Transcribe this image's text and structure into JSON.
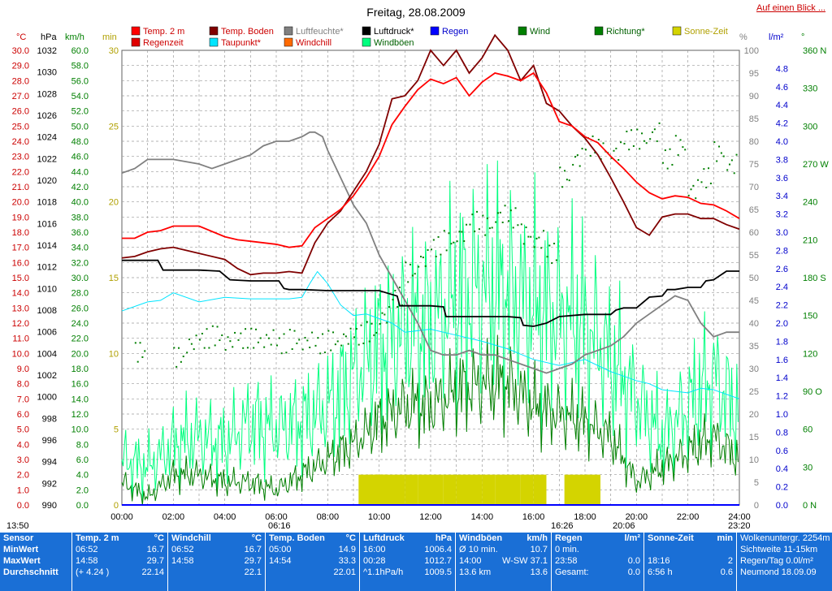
{
  "title": "Freitag, 28.08.2009",
  "link": "Auf einen Blick ...",
  "colors": {
    "temp": "#ff0000",
    "boden": "#800000",
    "humid": "#808080",
    "pressure": "#000000",
    "dew": "#00e5ff",
    "windchill": "#ff6a00",
    "gust": "#00ff7f",
    "rain": "#0000ff",
    "wind": "#007f00",
    "dir": "#007f00",
    "sun": "#d4d400",
    "rainTime": "#e00000"
  },
  "legend": [
    {
      "label": "Temp. 2 m",
      "color": "#ff0000"
    },
    {
      "label": "Temp. Boden",
      "color": "#800000"
    },
    {
      "label": "Luftfeuchte*",
      "color": "#808080"
    },
    {
      "label": "Luftdruck*",
      "color": "#000000"
    },
    {
      "label": "Regen",
      "color": "#0000ff"
    },
    {
      "label": "Wind",
      "color": "#007f00"
    },
    {
      "label": "Richtung*",
      "color": "#007f00"
    },
    {
      "label": "Sonne-Zeit",
      "color": "#d4d400"
    },
    {
      "label": "Regenzeit",
      "color": "#e00000"
    },
    {
      "label": "Taupunkt*",
      "color": "#00e5ff"
    },
    {
      "label": "Windchill",
      "color": "#ff6a00"
    },
    {
      "label": "Windböen",
      "color": "#00ff7f"
    }
  ],
  "axis_units": {
    "temp": "°C",
    "pressure": "hPa",
    "speed": "km/h",
    "minutes": "min",
    "percent": "%",
    "rain": "l/m²",
    "degree": "°"
  },
  "axes": {
    "temp_ticks": [
      "30.0",
      "29.0",
      "28.0",
      "27.0",
      "26.0",
      "25.0",
      "24.0",
      "23.0",
      "22.0",
      "21.0",
      "20.0",
      "19.0",
      "18.0",
      "17.0",
      "16.0",
      "15.0",
      "14.0",
      "13.0",
      "12.0",
      "11.0",
      "10.0",
      "9.0",
      "8.0",
      "7.0",
      "6.0",
      "5.0",
      "4.0",
      "3.0",
      "2.0",
      "1.0",
      "0.0"
    ],
    "pressure_ticks": [
      "1032",
      "1030",
      "1028",
      "1026",
      "1024",
      "1022",
      "1020",
      "1018",
      "1016",
      "1014",
      "1012",
      "1010",
      "1008",
      "1006",
      "1004",
      "1002",
      "1000",
      "998",
      "996",
      "994",
      "992",
      "990"
    ],
    "speed_ticks": [
      "60.0",
      "58.0",
      "56.0",
      "54.0",
      "52.0",
      "50.0",
      "48.0",
      "46.0",
      "44.0",
      "42.0",
      "40.0",
      "38.0",
      "36.0",
      "34.0",
      "32.0",
      "30.0",
      "28.0",
      "26.0",
      "24.0",
      "22.0",
      "20.0",
      "18.0",
      "16.0",
      "14.0",
      "12.0",
      "10.0",
      "8.0",
      "6.0",
      "4.0",
      "2.0",
      "0.0"
    ],
    "minute_ticks": [
      "30",
      "25",
      "20",
      "15",
      "10",
      "5",
      "0"
    ],
    "percent_ticks": [
      "100",
      "95",
      "90",
      "85",
      "80",
      "75",
      "70",
      "65",
      "60",
      "55",
      "50",
      "45",
      "40",
      "35",
      "30",
      "25",
      "20",
      "15",
      "10",
      "5",
      "0"
    ],
    "rain_ticks": [
      "4.8",
      "4.6",
      "4.4",
      "4.2",
      "4.0",
      "3.8",
      "3.6",
      "3.4",
      "3.2",
      "3.0",
      "2.8",
      "2.6",
      "2.4",
      "2.2",
      "2.0",
      "1.8",
      "1.6",
      "1.4",
      "1.2",
      "1.0",
      "0.8",
      "0.6",
      "0.4",
      "0.2",
      "0.0"
    ],
    "dir_ticks": [
      "360 N",
      "330",
      "300",
      "270 W",
      "240",
      "210",
      "180 S",
      "150",
      "120",
      "90 O",
      "60",
      "30",
      "0 N"
    ],
    "time_ticks": [
      "00:00",
      "02:00",
      "04:00",
      "06:00",
      "08:00",
      "10:00",
      "12:00",
      "14:00",
      "16:00",
      "18:00",
      "20:00",
      "22:00",
      "24:00"
    ],
    "sun_marks": [
      "13:50",
      "06:16",
      "16:26",
      "20:06",
      "23:20"
    ]
  },
  "chart_data": {
    "type": "line",
    "title": "Freitag, 28.08.2009",
    "x_unit": "hour of day",
    "xlim": [
      0,
      24
    ],
    "series": [
      {
        "name": "Temp. 2 m",
        "axis": "°C",
        "ylim": [
          0,
          30
        ],
        "x": [
          0,
          0.5,
          1,
          1.5,
          2,
          3,
          4,
          4.5,
          5,
          5.5,
          6,
          6.5,
          7,
          7.5,
          8,
          8.5,
          9,
          9.5,
          10,
          10.5,
          11,
          11.5,
          12,
          12.5,
          13,
          13.5,
          14,
          14.5,
          15,
          15.5,
          16,
          16.5,
          17,
          17.5,
          18,
          18.5,
          19,
          19.5,
          20,
          20.5,
          21,
          21.5,
          22,
          22.5,
          23,
          23.5,
          24
        ],
        "y": [
          17.6,
          17.6,
          18.0,
          18.1,
          18.4,
          18.4,
          17.7,
          17.5,
          17.4,
          17.3,
          17.2,
          17.0,
          17.1,
          18.3,
          18.9,
          19.5,
          20.4,
          21.6,
          23.0,
          25.1,
          26.3,
          27.4,
          28.1,
          27.8,
          28.2,
          27.0,
          27.9,
          28.5,
          28.3,
          28.0,
          28.5,
          27.2,
          25.3,
          25.0,
          24.3,
          23.9,
          23.0,
          22.2,
          21.3,
          20.6,
          20.2,
          20.4,
          20.3,
          19.9,
          19.8,
          19.4,
          18.9
        ]
      },
      {
        "name": "Temp. Boden",
        "axis": "°C",
        "ylim": [
          0,
          30
        ],
        "x": [
          0,
          0.5,
          1,
          1.5,
          2,
          3,
          4,
          4.5,
          5,
          5.5,
          6,
          6.5,
          7,
          7.5,
          8,
          8.5,
          9,
          9.5,
          10,
          10.5,
          11,
          11.5,
          12,
          12.5,
          13,
          13.5,
          14,
          14.5,
          15,
          15.5,
          16,
          16.5,
          17,
          17.5,
          18,
          18.5,
          19,
          19.5,
          20,
          20.5,
          21,
          21.5,
          22,
          22.5,
          23,
          23.5,
          24
        ],
        "y": [
          16.3,
          16.4,
          16.7,
          16.9,
          17.0,
          16.6,
          16.2,
          15.6,
          15.2,
          15.3,
          15.3,
          15.4,
          15.3,
          17.3,
          18.6,
          19.4,
          20.7,
          22.0,
          23.8,
          26.8,
          27.0,
          28.0,
          30.0,
          29.0,
          30.0,
          28.5,
          29.5,
          31.0,
          30.0,
          28.0,
          29.0,
          26.5,
          26.0,
          25.0,
          24.2,
          23.1,
          21.6,
          20.0,
          18.3,
          17.8,
          19.0,
          19.2,
          19.2,
          18.9,
          18.9,
          18.5,
          18.2
        ]
      },
      {
        "name": "Luftfeuchte*",
        "axis": "%",
        "ylim": [
          0,
          100
        ],
        "x": [
          0,
          0.5,
          1,
          1.5,
          2,
          3,
          3.5,
          4,
          4.5,
          5,
          5.5,
          6,
          6.5,
          7,
          7.3,
          7.5,
          7.8,
          8,
          8.5,
          9,
          9.5,
          10,
          10.5,
          11,
          11.5,
          12,
          12.5,
          13,
          13.5,
          14,
          14.5,
          15,
          15.5,
          16,
          16.5,
          17,
          17.5,
          18,
          18.5,
          19,
          19.5,
          20,
          20.5,
          21,
          21.5,
          22,
          22.5,
          23,
          23.5,
          24
        ],
        "y": [
          73,
          74,
          76,
          76,
          76,
          75,
          74,
          75,
          76,
          77,
          79,
          80,
          80,
          81,
          82,
          82,
          81,
          78,
          72,
          66,
          62,
          55,
          50,
          45,
          40,
          34,
          33,
          33,
          34,
          33,
          33,
          32,
          31,
          30,
          29,
          30,
          31,
          33,
          34,
          35,
          37,
          40,
          42,
          44,
          46,
          45,
          40,
          37,
          38,
          38
        ]
      },
      {
        "name": "Luftdruck*",
        "axis": "hPa",
        "ylim": [
          990,
          1032
        ],
        "x": [
          0,
          1,
          1.4,
          1.6,
          2,
          3,
          3.8,
          4.2,
          5,
          6,
          6.1,
          6.3,
          6.5,
          7,
          8,
          9,
          10,
          10.7,
          10.8,
          11.3,
          11.5,
          12,
          12.5,
          12.6,
          14,
          15,
          15.5,
          15.6,
          16,
          16.5,
          17,
          18,
          18.5,
          19,
          19.2,
          19.5,
          20,
          20.5,
          21,
          21.2,
          21.5,
          22,
          22.5,
          22.7,
          23,
          23.5,
          24
        ],
        "y": [
          1012.6,
          1012.6,
          1012.6,
          1011.7,
          1011.7,
          1011.7,
          1011.6,
          1010.8,
          1010.7,
          1010.7,
          1010.7,
          1010.0,
          1009.9,
          1009.9,
          1009.8,
          1009.8,
          1009.8,
          1009.3,
          1008.4,
          1008.4,
          1008.4,
          1008.4,
          1008.3,
          1007.4,
          1007.4,
          1007.4,
          1007.3,
          1006.6,
          1006.5,
          1006.8,
          1007.4,
          1007.6,
          1007.6,
          1007.6,
          1008.0,
          1008.2,
          1008.2,
          1009.2,
          1009.3,
          1009.9,
          1009.9,
          1010.1,
          1010.1,
          1010.7,
          1010.8,
          1011.6,
          1011.6
        ]
      },
      {
        "name": "Taupunkt*",
        "axis": "°C",
        "ylim": [
          0,
          30
        ],
        "x": [
          0,
          1,
          1.5,
          2,
          3,
          4,
          5,
          6,
          6.5,
          7,
          7.3,
          7.6,
          8,
          8.5,
          9,
          9.5,
          10,
          10.5,
          11,
          12,
          13,
          14,
          15,
          16,
          17,
          18,
          19,
          19.5,
          20,
          20.5,
          21,
          21.5,
          22,
          22.5,
          23,
          23.5,
          24
        ],
        "y": [
          12.8,
          13.4,
          13.5,
          14.0,
          13.4,
          13.7,
          13.6,
          13.6,
          13.6,
          13.7,
          14.6,
          15.4,
          14.6,
          13.2,
          12.5,
          12.6,
          12.3,
          12.0,
          11.4,
          11.6,
          11.2,
          10.8,
          10.3,
          9.6,
          9.2,
          9.6,
          8.8,
          8.5,
          8.2,
          8.0,
          7.6,
          7.5,
          7.4,
          7.7,
          7.6,
          7.3,
          7.0
        ]
      },
      {
        "name": "Windböen",
        "axis": "km/h",
        "ylim": [
          0,
          60
        ],
        "x": [
          0,
          1,
          2,
          3,
          4,
          5,
          6,
          7,
          8,
          9,
          10,
          11,
          12,
          13,
          14,
          15,
          16,
          17,
          18,
          19,
          20,
          21,
          22,
          23,
          24
        ],
        "y": [
          6,
          5,
          8,
          9,
          8,
          11,
          10,
          11,
          13,
          17,
          21,
          23,
          24,
          27,
          29,
          28,
          26,
          25,
          24,
          19,
          14,
          9,
          13,
          17,
          12
        ]
      },
      {
        "name": "Wind",
        "axis": "km/h",
        "ylim": [
          0,
          60
        ],
        "x": [
          0,
          1,
          2,
          3,
          4,
          5,
          6,
          7,
          8,
          9,
          10,
          11,
          12,
          13,
          14,
          15,
          16,
          17,
          18,
          19,
          20,
          21,
          22,
          23,
          24
        ],
        "y": [
          3,
          1,
          4,
          4,
          3,
          3,
          2,
          4,
          6,
          8,
          11,
          13,
          13,
          15,
          16,
          16,
          13,
          12,
          11,
          9,
          3,
          5,
          7,
          9,
          6
        ]
      },
      {
        "name": "Richtung*",
        "axis": "°",
        "ylim": [
          0,
          360
        ],
        "type": "scatter",
        "x": [
          0.5,
          2,
          2.5,
          3,
          3.5,
          4,
          4.5,
          5,
          5.5,
          6,
          6.5,
          7,
          7.5,
          8,
          8.5,
          9,
          9.5,
          10,
          10.5,
          11,
          11.5,
          12,
          12.5,
          13,
          13.5,
          14,
          14.5,
          15,
          15.5,
          16,
          16.5,
          17,
          17.5,
          18,
          18.5,
          19,
          19.5,
          20,
          20.5,
          21,
          21.5,
          22,
          22.5,
          23,
          23.5
        ],
        "y": [
          122,
          118,
          128,
          132,
          135,
          130,
          132,
          133,
          132,
          128,
          132,
          130,
          128,
          131,
          133,
          135,
          138,
          150,
          165,
          185,
          195,
          205,
          210,
          215,
          225,
          222,
          230,
          228,
          215,
          210,
          200,
          260,
          275,
          285,
          282,
          280,
          290,
          290,
          295,
          275,
          285,
          250,
          260,
          280,
          270
        ]
      },
      {
        "name": "Sonne-Zeit",
        "axis": "min",
        "ylim": [
          0,
          30
        ],
        "type": "bar",
        "x": [
          9.2,
          9.6,
          9.8,
          10.0,
          10.5,
          11,
          11.5,
          12,
          12.5,
          13,
          13.5,
          14,
          14.5,
          15,
          15.5,
          16,
          17.2,
          17.7,
          18.1
        ],
        "y": [
          2,
          2,
          2,
          2,
          2,
          2,
          2,
          2,
          2,
          2,
          2,
          2,
          2,
          2,
          2,
          2,
          2,
          2,
          2
        ]
      }
    ]
  },
  "stats": {
    "sensor": {
      "title": "Sensor",
      "rows": [
        "MinWert",
        "MaxWert",
        "Durchschnitt"
      ]
    },
    "temp": {
      "title": "Temp. 2 m",
      "unit": "°C",
      "min_t": "06:52",
      "min_v": "16.7",
      "max_t": "14:58",
      "max_v": "29.7",
      "avg_l": "(+ 4.24 )",
      "avg_v": "22.14"
    },
    "windchill": {
      "title": "Windchill",
      "unit": "°C",
      "min_t": "06:52",
      "min_v": "16.7",
      "max_t": "14:58",
      "max_v": "29.7",
      "avg_l": "",
      "avg_v": "22.1"
    },
    "boden": {
      "title": "Temp. Boden",
      "unit": "°C",
      "min_t": "05:00",
      "min_v": "14.9",
      "max_t": "14:54",
      "max_v": "33.3",
      "avg_l": "",
      "avg_v": "22.01"
    },
    "druck": {
      "title": "Luftdruck",
      "unit": "hPa",
      "min_t": "16:00",
      "min_v": "1006.4",
      "max_t": "00:28",
      "max_v": "1012.7",
      "avg_l": "^1.1hPa/h",
      "avg_v": "1009.5"
    },
    "boen": {
      "title": "Windböen",
      "unit": "km/h",
      "min_t": "Ø 10 min.",
      "min_v": "10.7",
      "max_t": "14:00",
      "max_m": "W-SW 37.1",
      "avg_l": "13.6 km",
      "avg_v": "13.6"
    },
    "regen": {
      "title": "Regen",
      "unit": "l/m²",
      "min_t": "0 min.",
      "min_v": "",
      "max_t": "23:58",
      "max_v": "0.0",
      "avg_l": "Gesamt:",
      "avg_v": "0.0"
    },
    "sonne": {
      "title": "Sonne-Zeit",
      "unit": "min",
      "min_t": "",
      "min_v": "",
      "max_t": "18:16",
      "max_v": "2",
      "avg_l": "6:56 h",
      "avg_v": "0.6"
    },
    "info": {
      "l1": "Wolkenuntergr. 2254m",
      "l2": "Sichtweite  11-15km",
      "l3": "Regen/Tag  0.0l/m²",
      "l4": "Neumond  18.09.09"
    }
  }
}
